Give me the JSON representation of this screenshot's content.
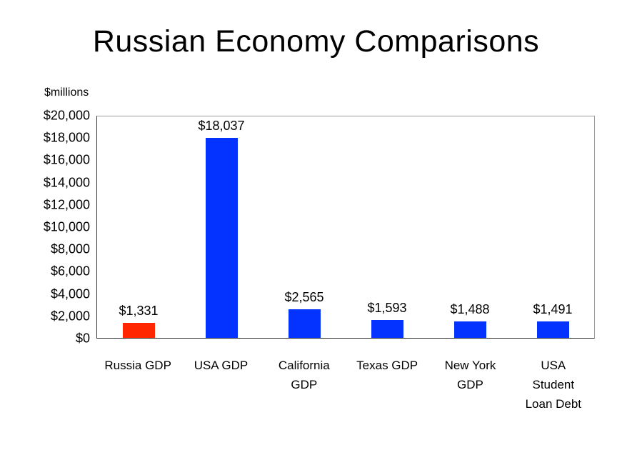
{
  "chart_data": {
    "type": "bar",
    "title": "Russian Economy Comparisons",
    "ylabel": "$millions",
    "xlabel": "",
    "ylim": [
      0,
      20000
    ],
    "ytick_step": 2000,
    "ytick_labels": [
      "$20,000",
      "$18,000",
      "$16,000",
      "$14,000",
      "$12,000",
      "$10,000",
      "$8,000",
      "$6,000",
      "$4,000",
      "$2,000",
      "$0"
    ],
    "categories": [
      "Russia GDP",
      "USA GDP",
      "California\nGDP",
      "Texas GDP",
      "New York\nGDP",
      "USA\nStudent\nLoan Debt"
    ],
    "values": [
      1331,
      18037,
      2565,
      1593,
      1488,
      1491
    ],
    "value_labels": [
      "$1,331",
      "$18,037",
      "$2,565",
      "$1,593",
      "$1,488",
      "$1,491"
    ],
    "bar_colors": [
      "#ff2600",
      "#0433ff",
      "#0433ff",
      "#0433ff",
      "#0433ff",
      "#0433ff"
    ],
    "colors": {
      "russia_bar": "#ff2600",
      "other_bars": "#0433ff"
    },
    "grid": false,
    "legend": "none"
  }
}
